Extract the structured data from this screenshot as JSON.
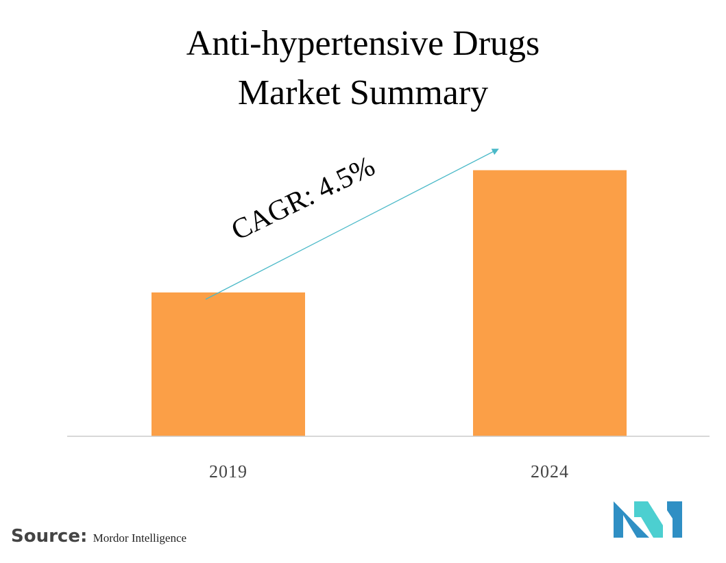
{
  "title_lines": [
    "Anti-hypertensive Drugs",
    "Market Summary"
  ],
  "cagr_label": "CAGR: 4.5%",
  "source": {
    "key": "Source:",
    "value": "Mordor Intelligence"
  },
  "logo": {
    "icon": "mordor-intelligence-logo-icon",
    "colors": [
      "#2f8fc4",
      "#4ccfd0",
      "#2f8fc4"
    ]
  },
  "colors": {
    "bar": "#fb9f47",
    "arrow": "#4ab9c8",
    "axis": "#cccccc",
    "tick_label": "#444444"
  },
  "chart_data": {
    "type": "bar",
    "title": "Anti-hypertensive Drugs Market Summary",
    "categories": [
      "2019",
      "2024"
    ],
    "values": [
      1.0,
      1.85
    ],
    "ylim": [
      0,
      2.1
    ],
    "xlabel": "",
    "ylabel": "",
    "grid": false,
    "legend": "none",
    "annotation": "CAGR: 4.5%"
  }
}
